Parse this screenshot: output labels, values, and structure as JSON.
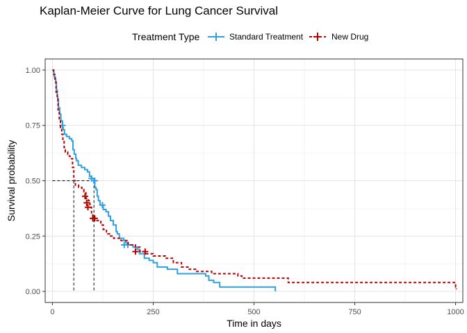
{
  "chart_data": {
    "type": "line",
    "title": "Kaplan-Meier Curve for Lung Cancer Survival",
    "xlabel": "Time in days",
    "ylabel": "Survival probability",
    "xlim": [
      -18,
      1018
    ],
    "ylim": [
      -0.05,
      1.05
    ],
    "x_ticks": [
      0,
      250,
      500,
      750,
      1000
    ],
    "x_tick_labels": [
      "0",
      "250",
      "500",
      "750",
      "1000"
    ],
    "y_ticks": [
      0,
      0.25,
      0.5,
      0.75,
      1
    ],
    "y_tick_labels": [
      "0.00",
      "0.25",
      "0.50",
      "0.75",
      "1.00"
    ],
    "grid": true,
    "legend": {
      "title": "Treatment Type",
      "placement": "top"
    },
    "median_lines": [
      {
        "x": 53,
        "y": 0.5
      },
      {
        "x": 103,
        "y": 0.5
      }
    ],
    "series": [
      {
        "name": "Standard Treatment",
        "color": "#2E9FDF",
        "dash": "solid",
        "points": [
          [
            0,
            1.0
          ],
          [
            3,
            0.99
          ],
          [
            4,
            0.97
          ],
          [
            7,
            0.96
          ],
          [
            8,
            0.94
          ],
          [
            10,
            0.91
          ],
          [
            12,
            0.88
          ],
          [
            13,
            0.86
          ],
          [
            15,
            0.83
          ],
          [
            18,
            0.8
          ],
          [
            21,
            0.77
          ],
          [
            25,
            0.74
          ],
          [
            27,
            0.73
          ],
          [
            30,
            0.71
          ],
          [
            35,
            0.7
          ],
          [
            42,
            0.69
          ],
          [
            48,
            0.68
          ],
          [
            51,
            0.64
          ],
          [
            54,
            0.62
          ],
          [
            58,
            0.6
          ],
          [
            60,
            0.59
          ],
          [
            64,
            0.57
          ],
          [
            72,
            0.56
          ],
          [
            80,
            0.55
          ],
          [
            87,
            0.54
          ],
          [
            92,
            0.52
          ],
          [
            97,
            0.51
          ],
          [
            103,
            0.49
          ],
          [
            105,
            0.47
          ],
          [
            108,
            0.46
          ],
          [
            111,
            0.43
          ],
          [
            114,
            0.41
          ],
          [
            118,
            0.39
          ],
          [
            126,
            0.37
          ],
          [
            133,
            0.36
          ],
          [
            139,
            0.34
          ],
          [
            144,
            0.32
          ],
          [
            151,
            0.3
          ],
          [
            158,
            0.27
          ],
          [
            161,
            0.26
          ],
          [
            166,
            0.24
          ],
          [
            177,
            0.23
          ],
          [
            182,
            0.22
          ],
          [
            186,
            0.21
          ],
          [
            200,
            0.2
          ],
          [
            210,
            0.19
          ],
          [
            216,
            0.17
          ],
          [
            228,
            0.15
          ],
          [
            240,
            0.14
          ],
          [
            250,
            0.13
          ],
          [
            260,
            0.11
          ],
          [
            285,
            0.1
          ],
          [
            310,
            0.08
          ],
          [
            350,
            0.08
          ],
          [
            380,
            0.07
          ],
          [
            388,
            0.05
          ],
          [
            400,
            0.04
          ],
          [
            415,
            0.02
          ],
          [
            550,
            0.02
          ],
          [
            553,
            0.0
          ]
        ],
        "censored": [
          [
            25,
            0.75
          ],
          [
            97,
            0.51
          ],
          [
            105,
            0.5
          ],
          [
            124,
            0.39
          ],
          [
            178,
            0.21
          ],
          [
            187,
            0.21
          ]
        ]
      },
      {
        "name": "New Drug",
        "color": "#B30000",
        "dash": "dashed",
        "points": [
          [
            0,
            1.0
          ],
          [
            3,
            0.98
          ],
          [
            6,
            0.96
          ],
          [
            9,
            0.9
          ],
          [
            12,
            0.87
          ],
          [
            14,
            0.82
          ],
          [
            17,
            0.78
          ],
          [
            20,
            0.74
          ],
          [
            23,
            0.71
          ],
          [
            26,
            0.68
          ],
          [
            29,
            0.65
          ],
          [
            32,
            0.63
          ],
          [
            38,
            0.62
          ],
          [
            42,
            0.61
          ],
          [
            47,
            0.6
          ],
          [
            50,
            0.56
          ],
          [
            53,
            0.5
          ],
          [
            57,
            0.48
          ],
          [
            65,
            0.47
          ],
          [
            73,
            0.46
          ],
          [
            78,
            0.45
          ],
          [
            83,
            0.42
          ],
          [
            89,
            0.41
          ],
          [
            93,
            0.38
          ],
          [
            97,
            0.35
          ],
          [
            100,
            0.33
          ],
          [
            107,
            0.32
          ],
          [
            120,
            0.3
          ],
          [
            126,
            0.28
          ],
          [
            134,
            0.26
          ],
          [
            142,
            0.25
          ],
          [
            152,
            0.24
          ],
          [
            170,
            0.23
          ],
          [
            188,
            0.21
          ],
          [
            206,
            0.2
          ],
          [
            217,
            0.18
          ],
          [
            232,
            0.17
          ],
          [
            250,
            0.16
          ],
          [
            280,
            0.15
          ],
          [
            300,
            0.13
          ],
          [
            320,
            0.11
          ],
          [
            336,
            0.1
          ],
          [
            355,
            0.09
          ],
          [
            395,
            0.08
          ],
          [
            460,
            0.07
          ],
          [
            470,
            0.06
          ],
          [
            585,
            0.04
          ],
          [
            995,
            0.04
          ],
          [
            1000,
            0.02
          ],
          [
            1002,
            0.01
          ]
        ],
        "censored": [
          [
            81,
            0.43
          ],
          [
            85,
            0.4
          ],
          [
            88,
            0.38
          ],
          [
            100,
            0.33
          ],
          [
            105,
            0.33
          ],
          [
            206,
            0.18
          ],
          [
            230,
            0.18
          ]
        ]
      }
    ]
  }
}
